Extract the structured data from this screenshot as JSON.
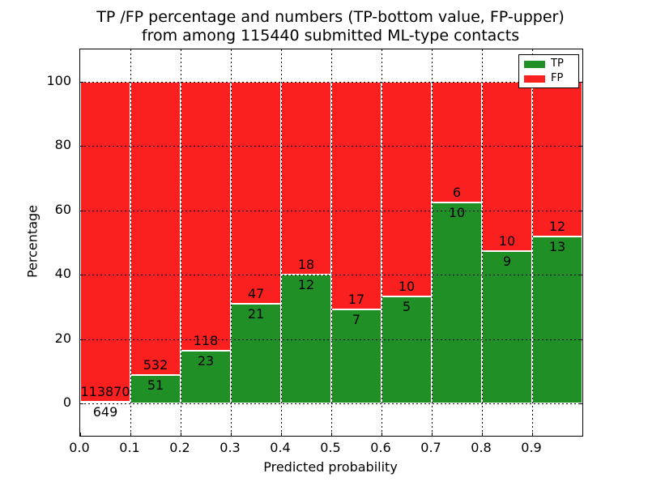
{
  "title": {
    "line1": "TP /FP percentage and numbers (TP-bottom value, FP-upper)",
    "line2": "from among 115440 submitted ML-type contacts"
  },
  "axes": {
    "xlabel": "Predicted probability",
    "ylabel": "Percentage",
    "x_tick_labels": [
      "0.0",
      "0.1",
      "0.2",
      "0.3",
      "0.4",
      "0.5",
      "0.6",
      "0.7",
      "0.8",
      "0.9"
    ],
    "y_tick_values": [
      0,
      20,
      40,
      60,
      80,
      100
    ]
  },
  "legend": {
    "items": [
      {
        "label": "TP",
        "color": "#1f8f26"
      },
      {
        "label": "FP",
        "color": "#fa2020"
      }
    ]
  },
  "colors": {
    "tp_green": "#1f8f26",
    "fp_red": "#fa2020",
    "bar_edge": "#ffffff",
    "grid": "#000000",
    "text": "#000000",
    "background": "#ffffff"
  },
  "chart_data": {
    "type": "bar",
    "variant": "stacked-normalized-percentage",
    "title": "TP /FP percentage and numbers (TP-bottom value, FP-upper) from among 115440 submitted ML-type contacts",
    "xlabel": "Predicted probability",
    "ylabel": "Percentage",
    "xlim": [
      0.0,
      1.0
    ],
    "ylim": [
      -10,
      110
    ],
    "grid": "dotted",
    "legend_position": "upper-right",
    "total_contacts": 115440,
    "bin_width": 0.1,
    "bin_starts": [
      0.0,
      0.1,
      0.2,
      0.3,
      0.4,
      0.5,
      0.6,
      0.7,
      0.8,
      0.9
    ],
    "series": [
      {
        "name": "TP",
        "color": "#1f8f26",
        "counts": [
          649,
          51,
          23,
          21,
          12,
          7,
          5,
          10,
          9,
          13
        ]
      },
      {
        "name": "FP",
        "color": "#fa2020",
        "counts": [
          113870,
          532,
          118,
          47,
          18,
          17,
          10,
          6,
          10,
          12
        ]
      }
    ],
    "tp_percent_of_bin": [
      0.57,
      8.75,
      16.31,
      30.88,
      40.0,
      29.17,
      33.33,
      62.5,
      47.37,
      52.0
    ],
    "annotation_note": "TP count printed just below TP/FP boundary, FP count just above it"
  }
}
